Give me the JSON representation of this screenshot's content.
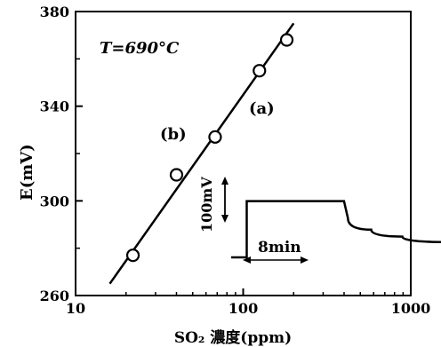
{
  "chart_data": [
    {
      "panel": "b",
      "type": "scatter",
      "x_scale": "log",
      "xlabel": "SO₂ 濃度(ppm)",
      "ylabel": "E(mV)",
      "xlim": [
        10,
        1000
      ],
      "ylim": [
        260,
        380
      ],
      "x_ticks": [
        "10",
        "100",
        "1000"
      ],
      "y_ticks": [
        "260",
        "300",
        "340",
        "380"
      ],
      "condition_label": "T=690°C",
      "panel_label": "(b)",
      "grid": false,
      "legend": "none",
      "series": [
        {
          "points": [
            {
              "x": 22,
              "y": 277
            },
            {
              "x": 40,
              "y": 311
            },
            {
              "x": 68,
              "y": 327
            },
            {
              "x": 125,
              "y": 355
            },
            {
              "x": 182,
              "y": 368
            }
          ]
        }
      ],
      "fit_line": {
        "x": [
          16,
          200
        ],
        "y": [
          265,
          375
        ]
      }
    },
    {
      "panel": "a",
      "type": "line",
      "panel_label": "(a)",
      "description_labels": {
        "vertical_scale": "100mV",
        "horizontal_scale": "8min"
      },
      "trace": {
        "x_min": [
          0,
          2,
          2,
          14.5,
          15,
          18,
          22,
          28,
          36,
          44,
          52
        ],
        "y_mV": [
          -15,
          -15,
          107,
          107,
          70,
          45,
          30,
          18,
          10,
          5,
          1
        ]
      }
    }
  ]
}
